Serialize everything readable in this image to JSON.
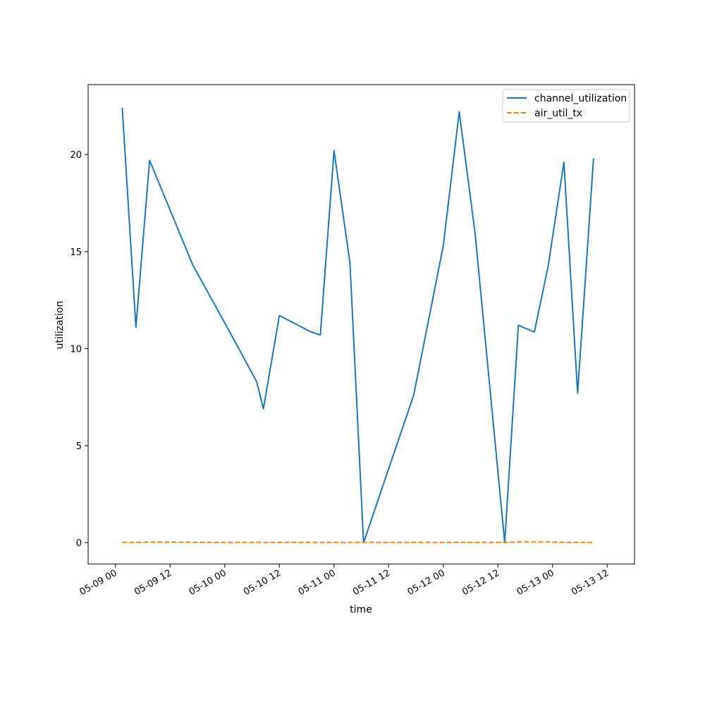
{
  "chart_data": {
    "type": "line",
    "title": "",
    "xlabel": "time",
    "ylabel": "utilization",
    "x_axis_type": "datetime",
    "xlim": [
      "2025-05-08T18:00",
      "2025-05-13T18:00"
    ],
    "ylim": [
      -1.1,
      23.6
    ],
    "x_ticks": [
      {
        "value": "2025-05-09T00:00",
        "label": "05-09 00"
      },
      {
        "value": "2025-05-09T12:00",
        "label": "05-09 12"
      },
      {
        "value": "2025-05-10T00:00",
        "label": "05-10 00"
      },
      {
        "value": "2025-05-10T12:00",
        "label": "05-10 12"
      },
      {
        "value": "2025-05-11T00:00",
        "label": "05-11 00"
      },
      {
        "value": "2025-05-11T12:00",
        "label": "05-11 12"
      },
      {
        "value": "2025-05-12T00:00",
        "label": "05-12 00"
      },
      {
        "value": "2025-05-12T12:00",
        "label": "05-12 12"
      },
      {
        "value": "2025-05-13T00:00",
        "label": "05-13 00"
      },
      {
        "value": "2025-05-13T12:00",
        "label": "05-13 12"
      }
    ],
    "y_ticks": [
      {
        "value": 0,
        "label": "0"
      },
      {
        "value": 5,
        "label": "5"
      },
      {
        "value": 10,
        "label": "10"
      },
      {
        "value": 15,
        "label": "15"
      },
      {
        "value": 20,
        "label": "20"
      }
    ],
    "grid": false,
    "legend_position": "top-right",
    "series": [
      {
        "name": "channel_utilization",
        "color": "#1f77b4",
        "style": "solid",
        "points": [
          [
            "2025-05-09T01:30",
            22.4
          ],
          [
            "2025-05-09T04:30",
            11.1
          ],
          [
            "2025-05-09T07:30",
            19.7
          ],
          [
            "2025-05-09T17:00",
            14.3
          ],
          [
            "2025-05-10T01:00",
            10.9
          ],
          [
            "2025-05-10T07:00",
            8.3
          ],
          [
            "2025-05-10T08:30",
            6.9
          ],
          [
            "2025-05-10T12:00",
            11.7
          ],
          [
            "2025-05-10T19:00",
            10.85
          ],
          [
            "2025-05-10T21:00",
            10.7
          ],
          [
            "2025-05-11T00:00",
            20.2
          ],
          [
            "2025-05-11T03:30",
            14.4
          ],
          [
            "2025-05-11T06:30",
            0.0
          ],
          [
            "2025-05-11T17:30",
            7.6
          ],
          [
            "2025-05-12T00:00",
            15.3
          ],
          [
            "2025-05-12T03:30",
            22.2
          ],
          [
            "2025-05-12T07:00",
            15.9
          ],
          [
            "2025-05-12T13:30",
            0.0
          ],
          [
            "2025-05-12T16:30",
            11.2
          ],
          [
            "2025-05-12T20:00",
            10.85
          ],
          [
            "2025-05-12T23:00",
            14.2
          ],
          [
            "2025-05-13T02:30",
            19.6
          ],
          [
            "2025-05-13T05:30",
            7.7
          ],
          [
            "2025-05-13T09:00",
            19.8
          ]
        ]
      },
      {
        "name": "air_util_tx",
        "color": "#ff7f0e",
        "style": "dashed",
        "points": [
          [
            "2025-05-09T01:30",
            0.01
          ],
          [
            "2025-05-09T04:30",
            0.01
          ],
          [
            "2025-05-09T07:30",
            0.03
          ],
          [
            "2025-05-09T17:00",
            0.02
          ],
          [
            "2025-05-10T01:00",
            0.01
          ],
          [
            "2025-05-10T07:00",
            0.01
          ],
          [
            "2025-05-10T08:30",
            0.01
          ],
          [
            "2025-05-10T12:00",
            0.02
          ],
          [
            "2025-05-10T19:00",
            0.01
          ],
          [
            "2025-05-10T21:00",
            0.01
          ],
          [
            "2025-05-11T00:00",
            0.01
          ],
          [
            "2025-05-11T03:30",
            0.01
          ],
          [
            "2025-05-11T06:30",
            0.01
          ],
          [
            "2025-05-11T17:30",
            0.01
          ],
          [
            "2025-05-12T00:00",
            0.01
          ],
          [
            "2025-05-12T03:30",
            0.02
          ],
          [
            "2025-05-12T07:00",
            0.01
          ],
          [
            "2025-05-12T13:30",
            0.01
          ],
          [
            "2025-05-12T16:30",
            0.04
          ],
          [
            "2025-05-12T20:00",
            0.04
          ],
          [
            "2025-05-12T23:00",
            0.04
          ],
          [
            "2025-05-13T02:30",
            0.02
          ],
          [
            "2025-05-13T05:30",
            0.01
          ],
          [
            "2025-05-13T09:00",
            0.01
          ]
        ]
      }
    ]
  }
}
